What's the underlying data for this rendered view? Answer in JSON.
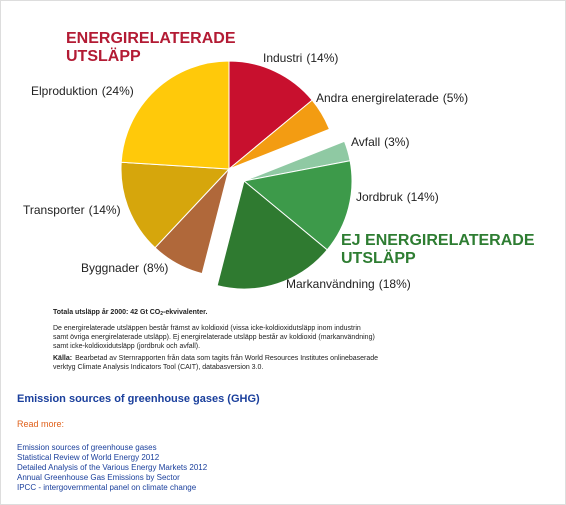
{
  "chart_data": {
    "type": "pie",
    "categories": [
      "Industri",
      "Andra energirelaterade",
      "Avfall",
      "Jordbruk",
      "Markanvändning",
      "Byggnader",
      "Transporter",
      "Elproduktion"
    ],
    "values": [
      14,
      5,
      3,
      14,
      18,
      8,
      14,
      24
    ],
    "value_labels": [
      "(14%)",
      "(5%)",
      "(3%)",
      "(14%)",
      "(18%)",
      "(8%)",
      "(14%)",
      "(24%)"
    ],
    "colors": [
      "#c8102e",
      "#f39c12",
      "#8fc9a3",
      "#3d9a4a",
      "#2f7a30",
      "#b0683a",
      "#d6a60c",
      "#ffc90a"
    ],
    "exploded": [
      false,
      false,
      true,
      true,
      true,
      false,
      false,
      false
    ],
    "annotations": [
      {
        "text": [
          "ENERGIRELATERADE",
          "UTSLÄPP"
        ],
        "color": "#b31b34"
      },
      {
        "text": [
          "EJ ENERGIRELATERADE",
          "UTSLÄPP"
        ],
        "color": "#2e7d32"
      }
    ]
  },
  "caption": {
    "title": {
      "before": "Totala utsläpp år 2000: 42 Gt CO",
      "sub": "2",
      "after": "-ekvivalenter."
    },
    "paragraph": [
      "De energirelaterade utsläppen består främst av koldioxid (vissa icke-koldioxidutsläpp inom industrin",
      "samt övriga energirelaterade utsläpp). Ej energirelaterade utsläpp består av koldioxid (markanvändning)",
      "samt icke-koldioxidutsläpp (jordbruk och avfall)."
    ],
    "source": {
      "label": "Källa:",
      "lines": [
        "Bearbetad av Sternrapporten från data som tagits från World Resources Institutes onlinebaserade",
        "verktyg Climate Analysis Indicators Tool (CAIT), databasversion 3.0."
      ]
    }
  },
  "section": {
    "title": "Emission sources of greenhouse gases (GHG)",
    "read_more": "Read more:",
    "links": [
      "Emission sources of greenhouse gases",
      "Statistical Review of World Energy 2012",
      "Detailed Analysis of the Various Energy Markets 2012",
      "Annual Greenhouse Gas Emissions by Sector",
      "IPCC - intergovernmental panel on climate change"
    ]
  }
}
